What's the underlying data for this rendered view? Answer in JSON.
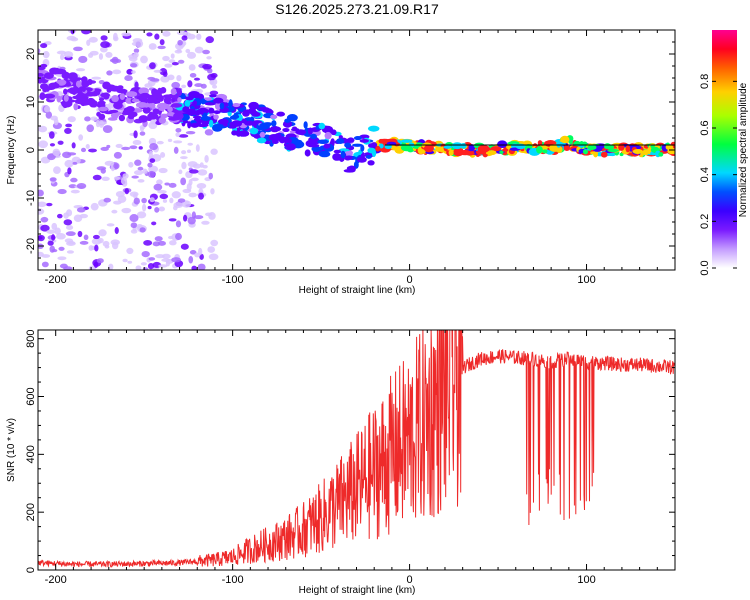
{
  "title": "S126.2025.273.21.09.R17",
  "chart_data": [
    {
      "type": "heatmap",
      "title": "S126.2025.273.21.09.R17",
      "xlabel": "Height of straight line (km)",
      "ylabel": "Frequency (Hz)",
      "xlim": [
        -210,
        150
      ],
      "ylim": [
        -25,
        25
      ],
      "xticks": [
        -200,
        -100,
        0,
        100
      ],
      "yticks": [
        -20,
        -10,
        0,
        10,
        20
      ],
      "colorbar": {
        "label": "Normalized spectral amplitude",
        "range": [
          0,
          1
        ],
        "ticks": [
          "0.0",
          "0.2",
          "0.4",
          "0.6",
          "0.8"
        ],
        "colors": [
          "#ffffff",
          "#b77cff",
          "#6a00ff",
          "#0000ff",
          "#00ffff",
          "#00ff00",
          "#ffff00",
          "#ff8000",
          "#ff0000",
          "#ff0080"
        ]
      },
      "ridge": {
        "x": [
          -210,
          -190,
          -170,
          -150,
          -130,
          -110,
          -90,
          -70,
          -50,
          -35,
          -20,
          -5,
          0,
          20,
          40,
          60,
          80,
          90,
          100,
          120,
          150
        ],
        "y": [
          15,
          12,
          10,
          9,
          9,
          8,
          6,
          4,
          2,
          -1,
          1,
          1,
          1,
          0,
          0,
          0.5,
          0.5,
          1.5,
          0,
          0,
          0
        ]
      }
    },
    {
      "type": "line",
      "xlabel": "Height of straight line (km)",
      "ylabel": "SNR (10 * v/v)",
      "xlim": [
        -210,
        150
      ],
      "ylim": [
        0,
        830
      ],
      "xticks": [
        -200,
        -100,
        0,
        100
      ],
      "yticks": [
        0,
        200,
        400,
        600,
        800
      ],
      "series": [
        {
          "name": "SNR",
          "color": "#ee2a2a",
          "x": [
            -210,
            -190,
            -170,
            -150,
            -130,
            -120,
            -110,
            -100,
            -90,
            -80,
            -70,
            -60,
            -50,
            -40,
            -30,
            -20,
            -10,
            0,
            10,
            20,
            30,
            40,
            50,
            60,
            70,
            80,
            90,
            100,
            110,
            120,
            130,
            140,
            150
          ],
          "y": [
            25,
            20,
            20,
            22,
            25,
            30,
            35,
            45,
            70,
            90,
            110,
            140,
            180,
            230,
            280,
            340,
            400,
            450,
            520,
            620,
            700,
            730,
            740,
            735,
            730,
            720,
            730,
            720,
            715,
            710,
            710,
            705,
            700
          ]
        }
      ]
    }
  ]
}
